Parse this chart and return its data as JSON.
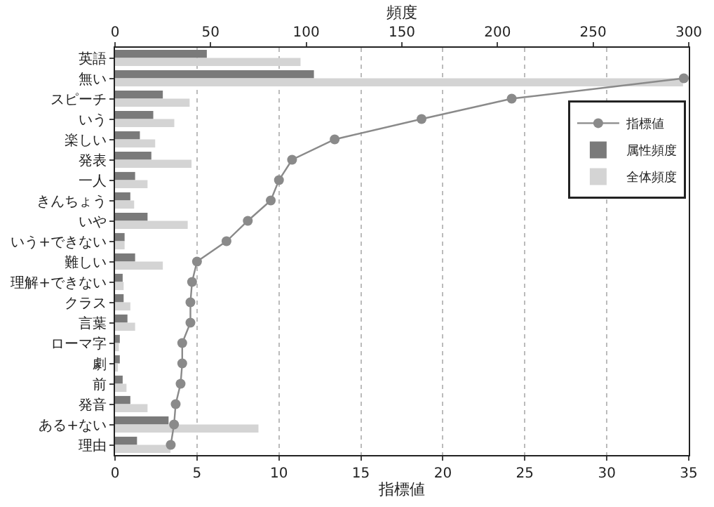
{
  "chart_data": {
    "type": "bar",
    "orientation": "horizontal",
    "categories": [
      "英語",
      "無い",
      "スピーチ",
      "いう",
      "楽しい",
      "発表",
      "一人",
      "きんちょう",
      "いや",
      "いう+できない",
      "難しい",
      "理解+できない",
      "クラス",
      "言葉",
      "ローマ字",
      "劇",
      "前",
      "発音",
      "ある+ない",
      "理由"
    ],
    "series": [
      {
        "name": "指標値",
        "type": "line",
        "color": "#8a8a8a",
        "values": [
          null,
          34.7,
          24.2,
          18.7,
          13.4,
          10.8,
          10.0,
          9.5,
          8.1,
          6.8,
          5.0,
          4.7,
          4.6,
          4.6,
          4.1,
          4.1,
          4.0,
          3.7,
          3.6,
          3.4
        ]
      },
      {
        "name": "属性頻度",
        "axis": "x2",
        "color": "#7a7a7a",
        "values": [
          48,
          104,
          25,
          20,
          13,
          19,
          10.5,
          8,
          17,
          5,
          10.5,
          4,
          4.5,
          6.5,
          2.5,
          2.5,
          4,
          8,
          28,
          11.5
        ]
      },
      {
        "name": "全体頻度",
        "axis": "x2",
        "color": "#d4d4d4",
        "values": [
          97,
          297,
          39,
          31,
          21,
          40,
          17,
          10,
          38,
          5,
          25,
          4.5,
          8,
          10.5,
          2,
          1.5,
          6,
          17,
          75,
          29
        ]
      }
    ],
    "xlabel": "指標値",
    "xlim": [
      0,
      35
    ],
    "xticks": [
      0,
      5,
      10,
      15,
      20,
      25,
      30,
      35
    ],
    "x2label": "頻度",
    "x2lim": [
      0,
      300
    ],
    "x2ticks": [
      0,
      50,
      100,
      150,
      200,
      250,
      300
    ],
    "grid": "x",
    "legend": "top right",
    "marker": "circle",
    "line_style": "solid"
  }
}
